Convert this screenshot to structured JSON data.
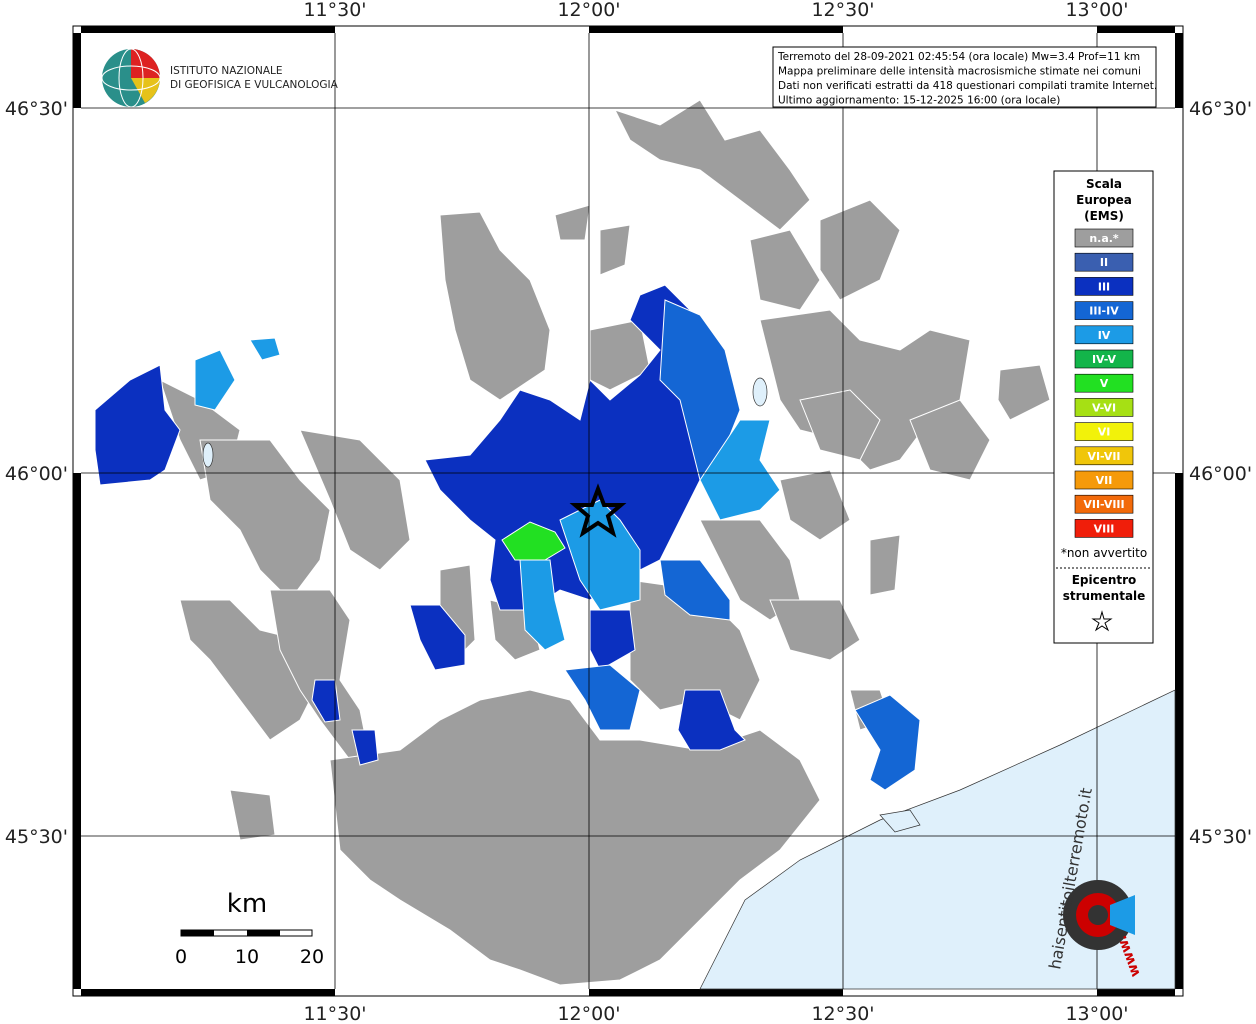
{
  "header": {
    "logo_lines": [
      "ISTITUTO NAZIONALE",
      "DI GEOFISICA E VULCANOLOGIA"
    ]
  },
  "info": [
    "Terremoto del 28-09-2021 02:45:54 (ora locale) Mw=3.4 Prof=11 km",
    "Mappa preliminare delle intensità macrosismiche stimate nei comuni",
    "Dati non verificati estratti da 418 questionari compilati tramite Internet.",
    "Ultimo aggiornamento: 15-12-2025 16:00 (ora locale)"
  ],
  "longitude_labels": [
    "11°30'",
    "12°00'",
    "12°30'",
    "13°00'"
  ],
  "latitude_labels": [
    "46°30'",
    "46°00'",
    "45°30'"
  ],
  "legend": {
    "title": [
      "Scala",
      "Europea",
      "(EMS)"
    ],
    "items": [
      {
        "label": "n.a.*",
        "color": "#9e9e9e"
      },
      {
        "label": "II",
        "color": "#3a5fb0"
      },
      {
        "label": "III",
        "color": "#0b30c0"
      },
      {
        "label": "III-IV",
        "color": "#1466d4"
      },
      {
        "label": "IV",
        "color": "#1c9be6"
      },
      {
        "label": "IV-V",
        "color": "#13b54a"
      },
      {
        "label": "V",
        "color": "#22e022"
      },
      {
        "label": "V-VI",
        "color": "#a6e014"
      },
      {
        "label": "VI",
        "color": "#f2f20a"
      },
      {
        "label": "VI-VII",
        "color": "#f0c60a"
      },
      {
        "label": "VII",
        "color": "#f59a0a"
      },
      {
        "label": "VII-VIII",
        "color": "#f26a0a"
      },
      {
        "label": "VIII",
        "color": "#f01e0a"
      }
    ],
    "note": "*non avvertito",
    "epicenter": [
      "Epicentro",
      "strumentale"
    ]
  },
  "scale_bar": {
    "unit": "km",
    "labels": [
      "0",
      "10",
      "20"
    ]
  },
  "footer_logo": {
    "site": "haisentitoilterremoto.it",
    "prefix": "www."
  }
}
